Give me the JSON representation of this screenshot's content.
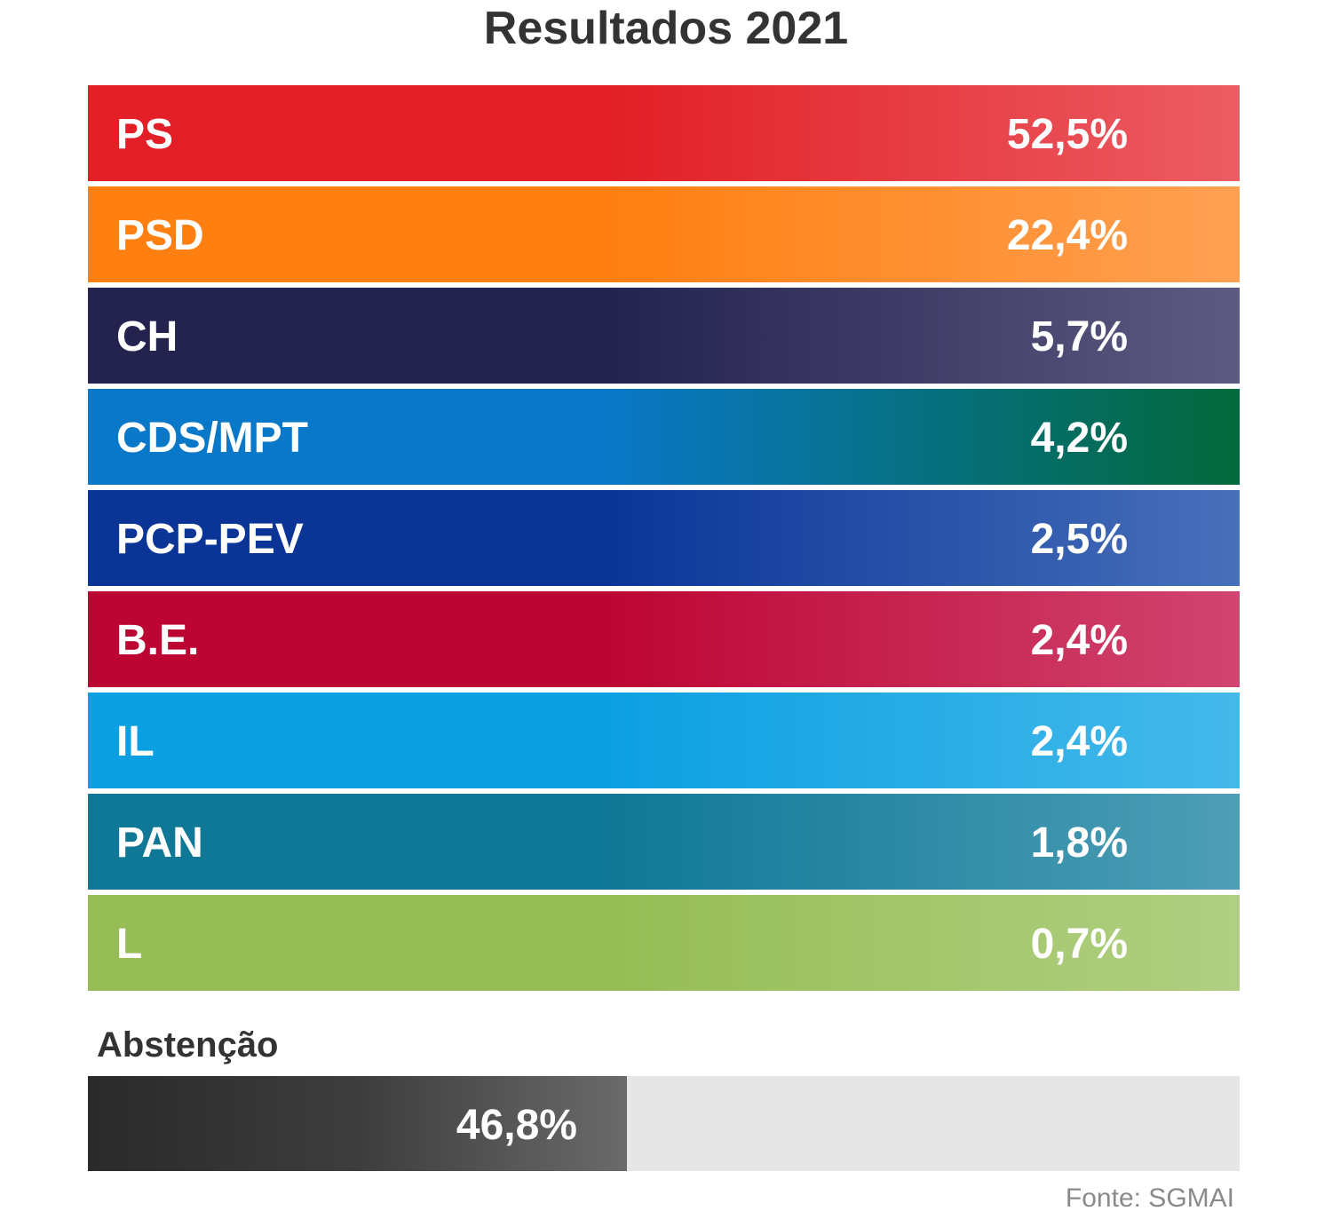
{
  "chart_data": {
    "type": "bar",
    "title": "Resultados 2021",
    "categories": [
      "PS",
      "PSD",
      "CH",
      "CDS/MPT",
      "PCP-PEV",
      "B.E.",
      "IL",
      "PAN",
      "L"
    ],
    "values": [
      52.5,
      22.4,
      5.7,
      4.2,
      2.5,
      2.4,
      2.4,
      1.8,
      0.7
    ],
    "value_labels": [
      "52,5%",
      "22,4%",
      "5,7%",
      "4,2%",
      "2,5%",
      "2,4%",
      "2,4%",
      "1,8%",
      "0,7%"
    ],
    "colors": [
      [
        "#e21f26",
        "#ec5c63"
      ],
      [
        "#ff7f11",
        "#ffa052"
      ],
      [
        "#24224f",
        "#5d5b82"
      ],
      [
        "#0a78c8",
        "#03683a"
      ],
      [
        "#0a3597",
        "#476fba"
      ],
      [
        "#bd0534",
        "#d14570"
      ],
      [
        "#0ca0e2",
        "#45b9ea"
      ],
      [
        "#0f7896",
        "#4e9eb6"
      ],
      [
        "#96bd55",
        "#b0cf82"
      ]
    ],
    "abstention": {
      "label": "Abstenção",
      "value": 46.8,
      "value_label": "46,8%"
    },
    "source": "Fonte: SGMAI"
  }
}
